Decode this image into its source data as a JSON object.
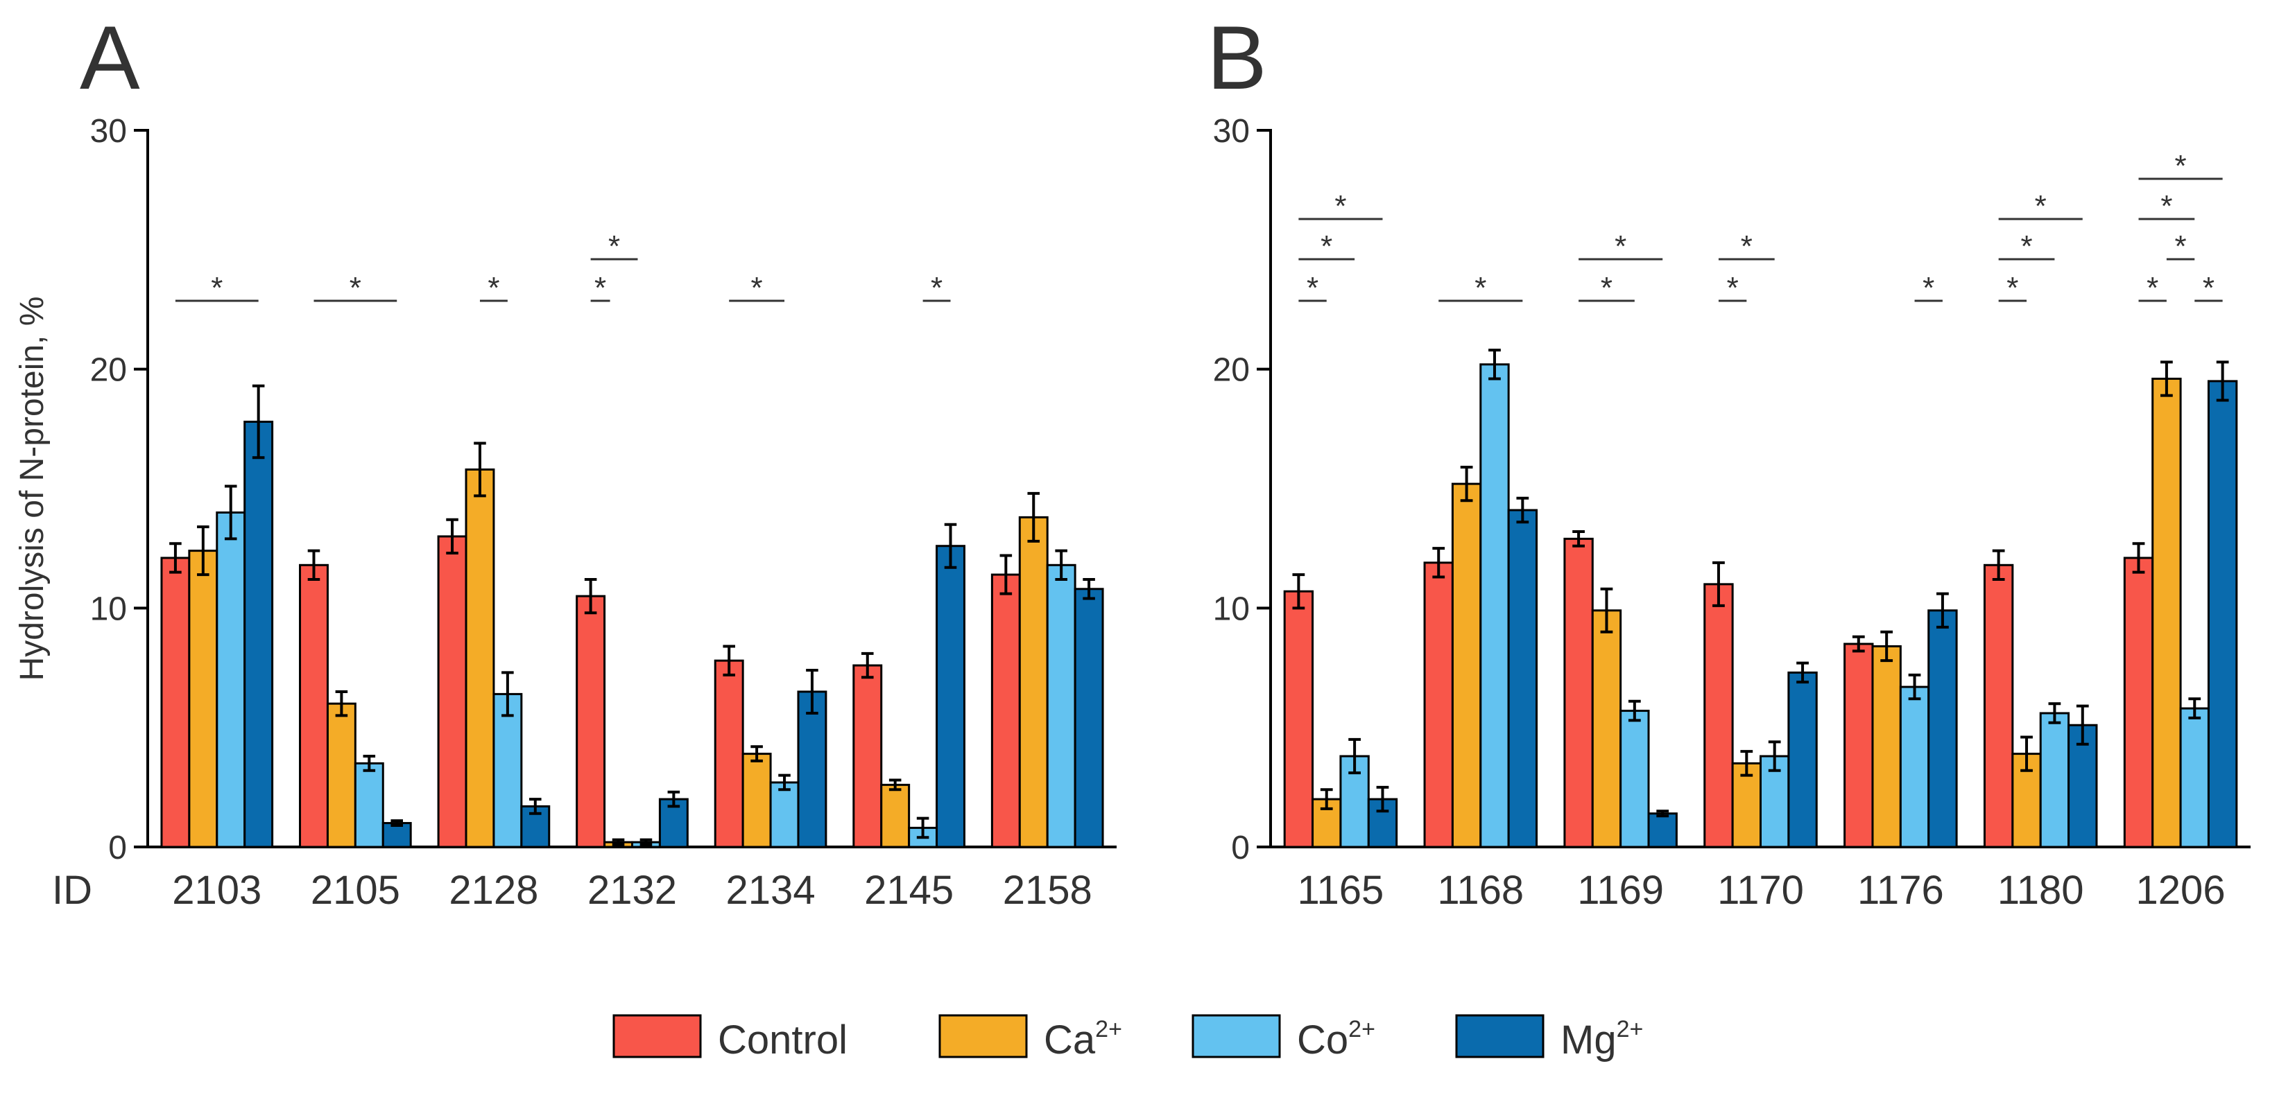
{
  "chart_data": [
    {
      "type": "bar",
      "panel": "A",
      "ylabel": "Hydrolysis of N-protein, %",
      "id_label": "ID",
      "ylim": [
        0,
        30
      ],
      "yticks": [
        "0",
        "10",
        "20",
        "30"
      ],
      "categories": [
        "2103",
        "2105",
        "2128",
        "2132",
        "2134",
        "2145",
        "2158"
      ],
      "series": [
        {
          "name": "Control",
          "values": [
            12.1,
            11.8,
            13.0,
            10.5,
            7.8,
            7.6,
            11.4
          ],
          "errors": [
            0.6,
            0.6,
            0.7,
            0.7,
            0.6,
            0.5,
            0.8
          ]
        },
        {
          "name": "Ca2+",
          "values": [
            12.4,
            6.0,
            15.8,
            0.2,
            3.9,
            2.6,
            13.8
          ],
          "errors": [
            1.0,
            0.5,
            1.1,
            0.1,
            0.3,
            0.2,
            1.0
          ]
        },
        {
          "name": "Co2+",
          "values": [
            14.0,
            3.5,
            6.4,
            0.2,
            2.7,
            0.8,
            11.8
          ],
          "errors": [
            1.1,
            0.3,
            0.9,
            0.1,
            0.3,
            0.4,
            0.6
          ]
        },
        {
          "name": "Mg2+",
          "values": [
            17.8,
            1.0,
            1.7,
            2.0,
            6.5,
            12.6,
            10.8
          ],
          "errors": [
            1.5,
            0.1,
            0.3,
            0.3,
            0.9,
            0.9,
            0.4
          ]
        }
      ],
      "significance": [
        {
          "cat": 0,
          "from": 0,
          "to": 3,
          "level": 0
        },
        {
          "cat": 1,
          "from": 0,
          "to": 3,
          "level": 0
        },
        {
          "cat": 2,
          "from": 1,
          "to": 2,
          "level": 0
        },
        {
          "cat": 3,
          "from": 0,
          "to": 0.7,
          "level": 0
        },
        {
          "cat": 3,
          "from": 0,
          "to": 1.7,
          "level": 1
        },
        {
          "cat": 4,
          "from": 0,
          "to": 2,
          "level": 0
        },
        {
          "cat": 5,
          "from": 2,
          "to": 3,
          "level": 0
        }
      ],
      "star": "*"
    },
    {
      "type": "bar",
      "panel": "B",
      "ylim": [
        0,
        30
      ],
      "yticks": [
        "0",
        "10",
        "20",
        "30"
      ],
      "categories": [
        "1165",
        "1168",
        "1169",
        "1170",
        "1176",
        "1180",
        "1206"
      ],
      "series": [
        {
          "name": "Control",
          "values": [
            10.7,
            11.9,
            12.9,
            11.0,
            8.5,
            11.8,
            12.1
          ],
          "errors": [
            0.7,
            0.6,
            0.3,
            0.9,
            0.3,
            0.6,
            0.6
          ]
        },
        {
          "name": "Ca2+",
          "values": [
            2.0,
            15.2,
            9.9,
            3.5,
            8.4,
            3.9,
            19.6
          ],
          "errors": [
            0.4,
            0.7,
            0.9,
            0.5,
            0.6,
            0.7,
            0.7
          ]
        },
        {
          "name": "Co2+",
          "values": [
            3.8,
            20.2,
            5.7,
            3.8,
            6.7,
            5.6,
            5.8
          ],
          "errors": [
            0.7,
            0.6,
            0.4,
            0.6,
            0.5,
            0.4,
            0.4
          ]
        },
        {
          "name": "Mg2+",
          "values": [
            2.0,
            14.1,
            1.4,
            7.3,
            9.9,
            5.1,
            19.5
          ],
          "errors": [
            0.5,
            0.5,
            0.1,
            0.4,
            0.7,
            0.8,
            0.8
          ]
        }
      ],
      "significance": [
        {
          "cat": 0,
          "from": 0,
          "to": 1,
          "level": 0
        },
        {
          "cat": 0,
          "from": 0,
          "to": 2,
          "level": 1
        },
        {
          "cat": 0,
          "from": 0,
          "to": 3,
          "level": 2
        },
        {
          "cat": 1,
          "from": 0,
          "to": 3,
          "level": 0
        },
        {
          "cat": 2,
          "from": 0,
          "to": 2,
          "level": 0
        },
        {
          "cat": 2,
          "from": 0,
          "to": 3,
          "level": 1
        },
        {
          "cat": 3,
          "from": 0,
          "to": 1,
          "level": 0
        },
        {
          "cat": 3,
          "from": 0,
          "to": 2,
          "level": 1
        },
        {
          "cat": 4,
          "from": 2,
          "to": 3,
          "level": 0
        },
        {
          "cat": 5,
          "from": 0,
          "to": 1,
          "level": 0
        },
        {
          "cat": 5,
          "from": 0,
          "to": 2,
          "level": 1
        },
        {
          "cat": 5,
          "from": 0,
          "to": 3,
          "level": 2
        },
        {
          "cat": 6,
          "from": 0,
          "to": 1,
          "level": 0
        },
        {
          "cat": 6,
          "from": 2,
          "to": 3,
          "level": 0
        },
        {
          "cat": 6,
          "from": 1,
          "to": 2,
          "level": 1
        },
        {
          "cat": 6,
          "from": 0,
          "to": 2,
          "level": 2
        },
        {
          "cat": 6,
          "from": 0,
          "to": 3,
          "level": 3
        }
      ],
      "star": "*"
    }
  ],
  "legend": [
    {
      "name": "Control",
      "base": "Control",
      "sup": "",
      "color": "#F8564A"
    },
    {
      "name": "Ca2+",
      "base": "Ca",
      "sup": "2+",
      "color": "#F4AC27"
    },
    {
      "name": "Co2+",
      "base": "Co",
      "sup": "2+",
      "color": "#63C2F0"
    },
    {
      "name": "Mg2+",
      "base": "Mg",
      "sup": "2+",
      "color": "#0A6BAD"
    }
  ],
  "colors": {
    "Control": "#F8564A",
    "Ca2+": "#F4AC27",
    "Co2+": "#63C2F0",
    "Mg2+": "#0A6BAD"
  }
}
